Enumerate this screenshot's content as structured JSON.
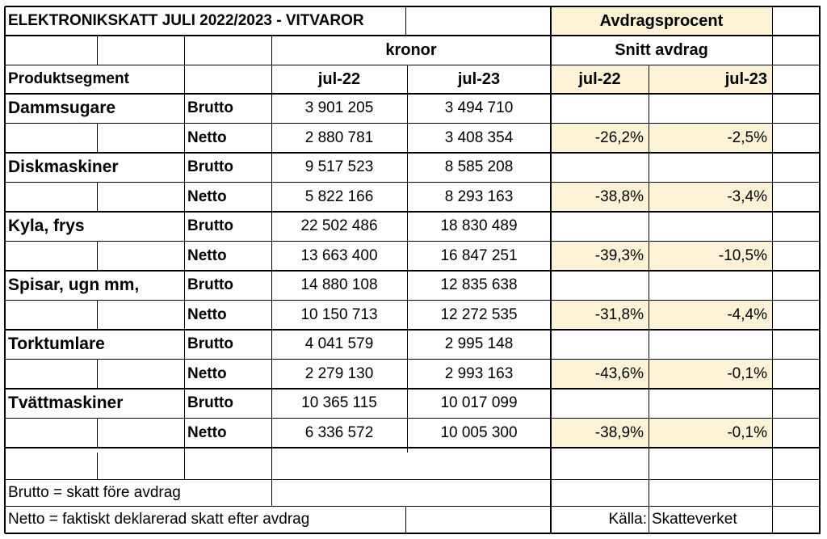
{
  "title": "ELEKTRONIKSKATT JULI 2022/2023 - VITVAROR",
  "avdrag_header": "Avdragsprocent",
  "kronor_label": "kronor",
  "snitt_label": "Snitt avdrag",
  "segment_header": "Produktsegment",
  "col_jul22": "jul-22",
  "col_jul23": "jul-23",
  "brutto_label": "Brutto",
  "netto_label": "Netto",
  "segments": [
    {
      "name": "Dammsugare",
      "brutto_22": "3 901 205",
      "brutto_23": "3 494 710",
      "netto_22": "2 880 781",
      "netto_23": "3 408 354",
      "avdrag_22": "-26,2%",
      "avdrag_23": "-2,5%"
    },
    {
      "name": "Diskmaskiner",
      "brutto_22": "9 517 523",
      "brutto_23": "8 585 208",
      "netto_22": "5 822 166",
      "netto_23": "8 293 163",
      "avdrag_22": "-38,8%",
      "avdrag_23": "-3,4%"
    },
    {
      "name": "Kyla, frys",
      "brutto_22": "22 502 486",
      "brutto_23": "18 830 489",
      "netto_22": "13 663 400",
      "netto_23": "16 847 251",
      "avdrag_22": "-39,3%",
      "avdrag_23": "-10,5%"
    },
    {
      "name": "Spisar, ugn mm,",
      "brutto_22": "14 880 108",
      "brutto_23": "12 835 638",
      "netto_22": "10 150 713",
      "netto_23": "12 272 535",
      "avdrag_22": "-31,8%",
      "avdrag_23": "-4,4%"
    },
    {
      "name": "Torktumlare",
      "brutto_22": "4 041 579",
      "brutto_23": "2 995 148",
      "netto_22": "2 279 130",
      "netto_23": "2 993 163",
      "avdrag_22": "-43,6%",
      "avdrag_23": "-0,1%"
    },
    {
      "name": "Tvättmaskiner",
      "brutto_22": "10 365 115",
      "brutto_23": "10 017 099",
      "netto_22": "6 336 572",
      "netto_23": "10 005 300",
      "avdrag_22": "-38,9%",
      "avdrag_23": "-0,1%"
    }
  ],
  "note_brutto": "Brutto = skatt före avdrag",
  "note_netto": "Netto = faktiskt deklarerad skatt efter avdrag",
  "source_label": "Källa:",
  "source_value": "Skatteverket",
  "colors": {
    "highlight": "#fdf2d5",
    "grid": "#000000"
  }
}
